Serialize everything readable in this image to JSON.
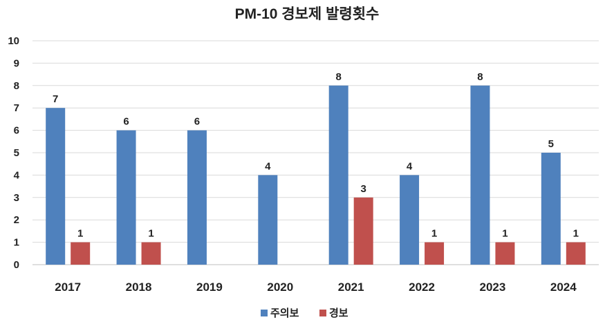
{
  "chart_data": {
    "type": "bar",
    "title": "PM-10 경보제 발령횟수",
    "categories": [
      "2017",
      "2018",
      "2019",
      "2020",
      "2021",
      "2022",
      "2023",
      "2024"
    ],
    "series": [
      {
        "name": "주의보",
        "color": "#4F81BD",
        "values": [
          7,
          6,
          6,
          4,
          8,
          4,
          8,
          5
        ]
      },
      {
        "name": "경보",
        "color": "#C0504D",
        "values": [
          1,
          1,
          null,
          null,
          3,
          1,
          1,
          1
        ]
      }
    ],
    "xlabel": "",
    "ylabel": "",
    "ylim": [
      0,
      10
    ],
    "yticks": [
      "0",
      "1",
      "2",
      "3",
      "4",
      "5",
      "6",
      "7",
      "8",
      "9",
      "10"
    ],
    "grid": true,
    "legend_position": "bottom",
    "data_labels": true
  }
}
